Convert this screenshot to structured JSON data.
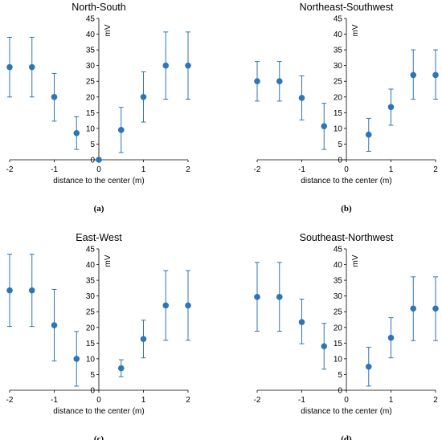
{
  "chart_data": [
    {
      "type": "scatter",
      "panel_label": "(a)",
      "title": "North-South",
      "xlabel": "distance to the center (m)",
      "ylabel": "mV",
      "xlim": [
        -2,
        2
      ],
      "ylim": [
        0,
        45
      ],
      "xticks": [
        -2,
        -1,
        0,
        1,
        2
      ],
      "yticks": [
        0,
        5,
        10,
        15,
        20,
        25,
        30,
        35,
        40,
        45
      ],
      "grid": false,
      "color": "#2e75b6",
      "x": [
        -2,
        -1.5,
        -1,
        -0.5,
        0,
        0.5,
        1,
        1.5,
        2
      ],
      "y": [
        29.5,
        29.5,
        20,
        8.5,
        0,
        9.5,
        20,
        30,
        30
      ],
      "y_lower": [
        20,
        20,
        12.3,
        3.3,
        0,
        2.3,
        12,
        19.3,
        19.3
      ],
      "y_upper": [
        39,
        39,
        27.5,
        13.7,
        0,
        16.7,
        28,
        40.7,
        40.7
      ]
    },
    {
      "type": "scatter",
      "panel_label": "(b)",
      "title": "Northeast-Southwest",
      "xlabel": "distance to the center (m)",
      "ylabel": "mV",
      "xlim": [
        -2,
        2
      ],
      "ylim": [
        0,
        45
      ],
      "xticks": [
        -2,
        -1,
        0,
        1,
        2
      ],
      "yticks": [
        0,
        5,
        10,
        15,
        20,
        25,
        30,
        35,
        40,
        45
      ],
      "grid": false,
      "color": "#2e75b6",
      "x": [
        -2,
        -1.5,
        -1,
        -0.5,
        0.5,
        1,
        1.5,
        2
      ],
      "y": [
        25,
        25,
        19.7,
        10.7,
        8,
        16.8,
        27,
        27
      ],
      "y_lower": [
        18.7,
        18.7,
        12.7,
        3.3,
        2.7,
        11,
        19.3,
        19.3
      ],
      "y_upper": [
        31.3,
        31.3,
        26.7,
        18,
        13.2,
        22.5,
        35,
        35
      ]
    },
    {
      "type": "scatter",
      "panel_label": "(c)",
      "title": "East-West",
      "xlabel": "distance to the center (m)",
      "ylabel": "mV",
      "xlim": [
        -2,
        2
      ],
      "ylim": [
        0,
        45
      ],
      "xticks": [
        -2,
        -1,
        0,
        1,
        2
      ],
      "yticks": [
        0,
        5,
        10,
        15,
        20,
        25,
        30,
        35,
        40,
        45
      ],
      "grid": false,
      "color": "#2e75b6",
      "x": [
        -2,
        -1.5,
        -1,
        -0.5,
        0.5,
        1,
        1.5,
        2
      ],
      "y": [
        31.8,
        31.8,
        20.7,
        10,
        7,
        16.3,
        27,
        27
      ],
      "y_lower": [
        20.3,
        20.3,
        9.3,
        1.3,
        4.3,
        10.3,
        15.9,
        15.9
      ],
      "y_upper": [
        43.3,
        43.3,
        32.1,
        18.7,
        9.7,
        22.3,
        38.1,
        38.1
      ]
    },
    {
      "type": "scatter",
      "panel_label": "(d)",
      "title": "Southeast-Northwest",
      "xlabel": "distance to the center (m)",
      "ylabel": "mV",
      "xlim": [
        -2,
        2
      ],
      "ylim": [
        0,
        45
      ],
      "xticks": [
        -2,
        -1,
        0,
        1,
        2
      ],
      "yticks": [
        0,
        5,
        10,
        15,
        20,
        25,
        30,
        35,
        40,
        45
      ],
      "grid": false,
      "color": "#2e75b6",
      "x": [
        -2,
        -1.5,
        -1,
        -0.5,
        0.5,
        1,
        1.5,
        2
      ],
      "y": [
        29.7,
        29.7,
        21.7,
        14,
        7.5,
        16.7,
        26,
        26
      ],
      "y_lower": [
        18.8,
        18.8,
        14.8,
        6.7,
        1.3,
        10.3,
        15.8,
        15.8
      ],
      "y_upper": [
        40.7,
        40.7,
        29,
        21.3,
        13.7,
        23.1,
        36.1,
        36.1
      ]
    }
  ]
}
